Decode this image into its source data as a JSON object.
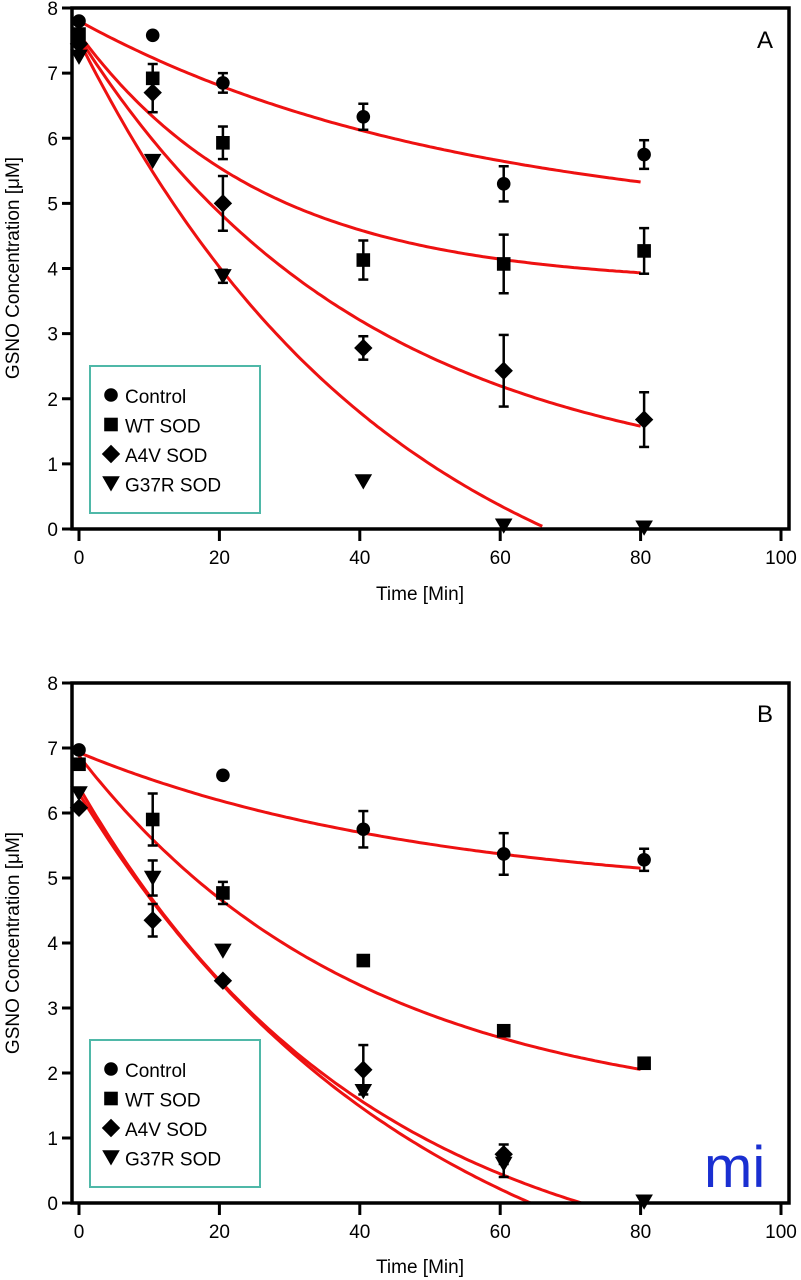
{
  "chart_data": [
    {
      "type": "scatter",
      "panel_label": "A",
      "xlabel": "Time [Min]",
      "ylabel": "GSNO Concentration [μM]",
      "xlim": [
        0,
        100
      ],
      "ylim": [
        0,
        8
      ],
      "xticks": [
        "0",
        "20",
        "40",
        "60",
        "80",
        "100"
      ],
      "yticks": [
        "0",
        "1",
        "2",
        "3",
        "4",
        "5",
        "6",
        "7",
        "8"
      ],
      "grid": false,
      "legend_position": "bottom-left",
      "fit_color": "#ee1111",
      "series": [
        {
          "name": "Control",
          "marker": "circle",
          "x": [
            0,
            10,
            20,
            40,
            60,
            80
          ],
          "y": [
            7.8,
            7.58,
            6.85,
            6.33,
            5.3,
            5.75
          ],
          "err": [
            0,
            0,
            0.15,
            0.2,
            0.27,
            0.22
          ],
          "fit": {
            "y0": 7.8,
            "plateau": 4.6,
            "k": 0.0185,
            "x_end": 80
          }
        },
        {
          "name": "WT SOD",
          "marker": "square",
          "x": [
            0,
            10,
            20,
            40,
            60,
            80
          ],
          "y": [
            7.6,
            6.92,
            5.93,
            4.13,
            4.07,
            4.27
          ],
          "err": [
            0,
            0.22,
            0.25,
            0.3,
            0.45,
            0.35
          ],
          "fit": {
            "y0": 7.6,
            "plateau": 3.75,
            "k": 0.038,
            "x_end": 80
          }
        },
        {
          "name": "A4V SOD",
          "marker": "diamond",
          "x": [
            0,
            10,
            20,
            40,
            60,
            80
          ],
          "y": [
            7.45,
            6.7,
            5.0,
            2.78,
            2.43,
            1.68
          ],
          "err": [
            0,
            0.3,
            0.42,
            0.18,
            0.55,
            0.42
          ],
          "fit": {
            "y0": 7.55,
            "plateau": 0.6,
            "k": 0.0245,
            "x_end": 80
          }
        },
        {
          "name": "G37R SOD",
          "marker": "triangle-down",
          "x": [
            0,
            10,
            20,
            40,
            60,
            80
          ],
          "y": [
            7.25,
            5.65,
            3.88,
            0.73,
            0.05,
            0.02
          ],
          "err": [
            0,
            0,
            0.1,
            0,
            0,
            0
          ],
          "fit": {
            "y0": 7.5,
            "plateau": -2.2,
            "k": 0.0222,
            "x_end": 66
          }
        }
      ]
    },
    {
      "type": "scatter",
      "panel_label": "B",
      "xlabel": "Time [Min]",
      "ylabel": "GSNO Concentration [μM]",
      "xlim": [
        0,
        100
      ],
      "ylim": [
        0,
        8
      ],
      "xticks": [
        "0",
        "20",
        "40",
        "60",
        "80",
        "100"
      ],
      "yticks": [
        "0",
        "1",
        "2",
        "3",
        "4",
        "5",
        "6",
        "7",
        "8"
      ],
      "grid": false,
      "legend_position": "bottom-left",
      "fit_color": "#ee1111",
      "series": [
        {
          "name": "Control",
          "marker": "circle",
          "x": [
            0,
            20,
            40,
            60,
            80
          ],
          "y": [
            6.97,
            6.58,
            5.75,
            5.37,
            5.28
          ],
          "err": [
            0,
            0,
            0.28,
            0.32,
            0.17
          ],
          "fit": {
            "y0": 6.93,
            "plateau": 4.7,
            "k": 0.02,
            "x_end": 80
          }
        },
        {
          "name": "WT SOD",
          "marker": "square",
          "x": [
            0,
            10,
            20,
            40,
            60,
            80
          ],
          "y": [
            6.75,
            5.9,
            4.77,
            3.73,
            2.65,
            2.15
          ],
          "err": [
            0,
            0.4,
            0.17,
            0,
            0,
            0
          ],
          "fit": {
            "y0": 6.88,
            "plateau": 1.3,
            "k": 0.025,
            "x_end": 80
          }
        },
        {
          "name": "A4V SOD",
          "marker": "diamond",
          "x": [
            0,
            10,
            20,
            40,
            60
          ],
          "y": [
            6.08,
            4.35,
            3.42,
            2.05,
            0.75
          ],
          "err": [
            0,
            0.25,
            0,
            0.38,
            0.15
          ],
          "fit": {
            "y0": 6.3,
            "plateau": -2.3,
            "k": 0.0205,
            "x_end": 75
          }
        },
        {
          "name": "G37R SOD",
          "marker": "triangle-down",
          "x": [
            0,
            10,
            20,
            40,
            60,
            80
          ],
          "y": [
            6.3,
            5.0,
            3.88,
            1.72,
            0.6,
            0.02
          ],
          "err": [
            0,
            0.27,
            0,
            0,
            0.2,
            0
          ],
          "fit": {
            "y0": 6.4,
            "plateau": -1.4,
            "k": 0.024,
            "x_end": 80
          }
        }
      ]
    }
  ],
  "legend": {
    "border_color": "#4fb8a8",
    "entries": [
      "Control",
      "WT SOD",
      "A4V SOD",
      "G37R SOD"
    ]
  },
  "logo": {
    "text": "mi",
    "color": "#1a2fd1"
  }
}
